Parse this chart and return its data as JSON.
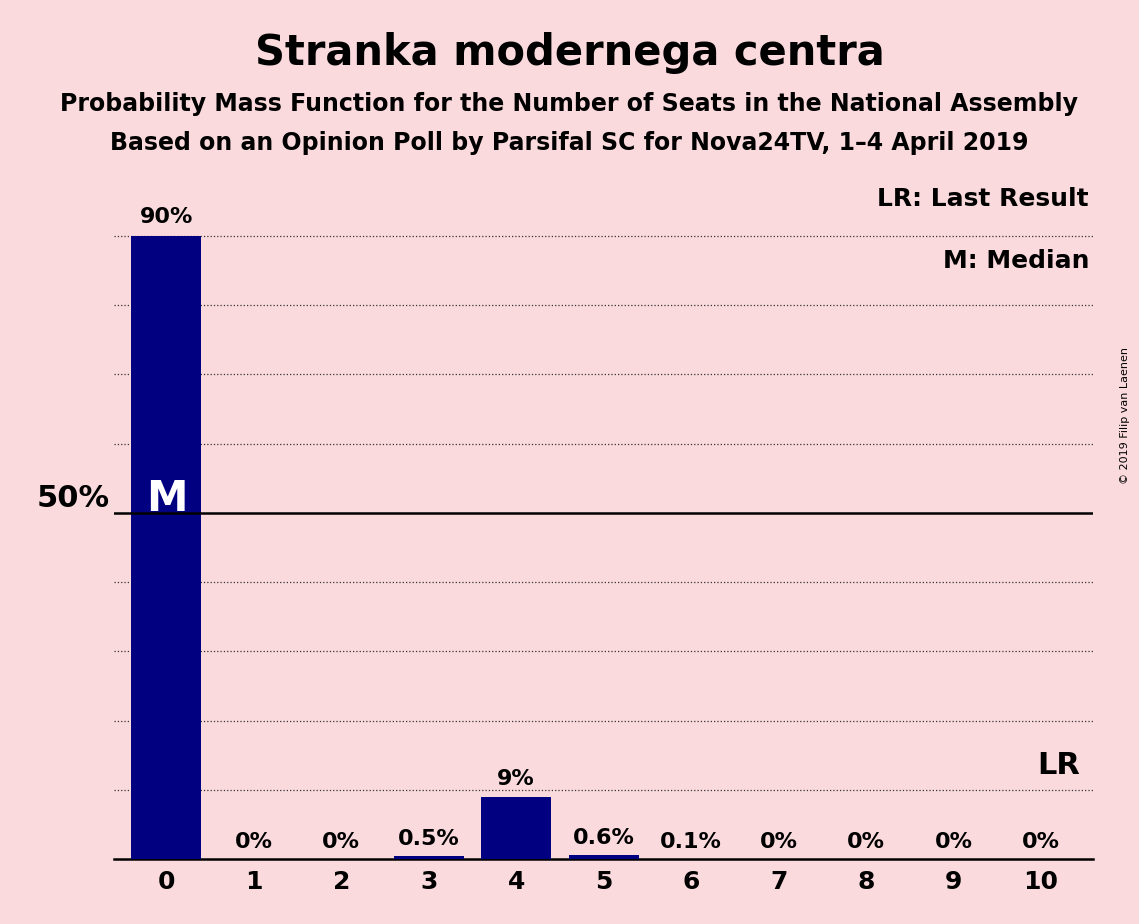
{
  "title": "Stranka modernega centra",
  "subtitle1": "Probability Mass Function for the Number of Seats in the National Assembly",
  "subtitle2": "Based on an Opinion Poll by Parsifal SC for Nova24TV, 1–4 April 2019",
  "copyright": "© 2019 Filip van Laenen",
  "categories": [
    0,
    1,
    2,
    3,
    4,
    5,
    6,
    7,
    8,
    9,
    10
  ],
  "values": [
    90.0,
    0.0,
    0.0,
    0.5,
    9.0,
    0.6,
    0.1,
    0.0,
    0.0,
    0.0,
    0.0
  ],
  "labels": [
    "90%",
    "0%",
    "0%",
    "0.5%",
    "9%",
    "0.6%",
    "0.1%",
    "0%",
    "0%",
    "0%",
    "0%"
  ],
  "bar_color": "#000080",
  "background_color": "#fadadd",
  "median_seat": 0,
  "lr_seat": 10,
  "fifty_pct_line": 50,
  "legend_lr": "LR: Last Result",
  "legend_m": "M: Median",
  "ylim": [
    0,
    100
  ],
  "title_fontsize": 30,
  "subtitle_fontsize": 17,
  "bar_label_fontsize": 16,
  "axis_tick_fontsize": 18,
  "fifty_label_fontsize": 22,
  "m_label_fontsize": 30,
  "legend_fontsize": 18,
  "lr_label_fontsize": 22,
  "copyright_fontsize": 8
}
